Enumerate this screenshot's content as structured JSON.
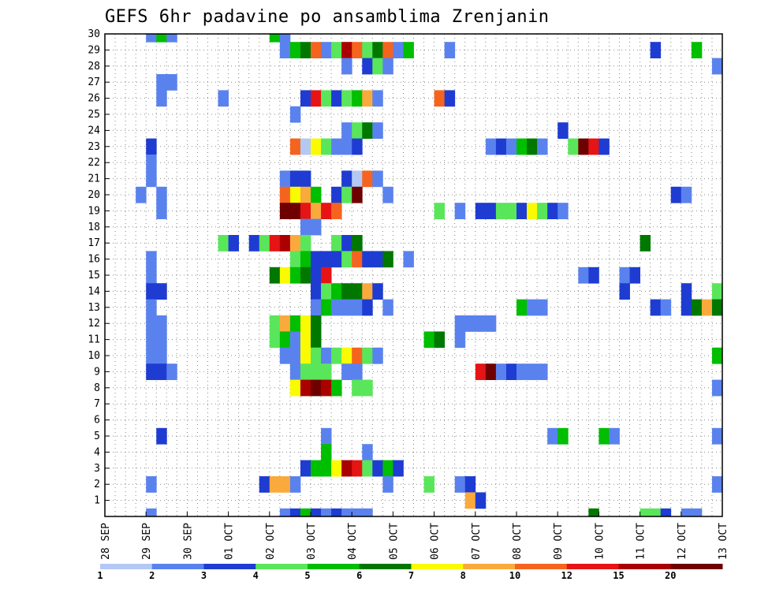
{
  "chart_data": {
    "type": "heatmap",
    "title": "GEFS 6hr padavine po ansamblima Zrenjanin",
    "xlabel": "",
    "ylabel": "",
    "x_tick_labels": [
      "28 SEP",
      "29 SEP",
      "30 SEP",
      "01 OCT",
      "02 OCT",
      "03 OCT",
      "04 OCT",
      "05 OCT",
      "06 OCT",
      "07 OCT",
      "08 OCT",
      "09 OCT",
      "10 OCT",
      "11 OCT",
      "12 OCT",
      "13 OCT"
    ],
    "y_tick_labels": [
      "1",
      "2",
      "3",
      "4",
      "5",
      "6",
      "7",
      "8",
      "9",
      "10",
      "11",
      "12",
      "13",
      "14",
      "15",
      "16",
      "17",
      "18",
      "19",
      "20",
      "21",
      "22",
      "23",
      "24",
      "25",
      "26",
      "27",
      "28",
      "29",
      "30"
    ],
    "x_steps_per_day": 4,
    "x_range": [
      0,
      60
    ],
    "y_range": [
      0,
      30
    ],
    "grid": true,
    "legend": {
      "levels": [
        "1",
        "2",
        "3",
        "4",
        "5",
        "6",
        "7",
        "8",
        "10",
        "12",
        "15",
        "20"
      ],
      "colors": [
        "#b4c8f4",
        "#5a82ee",
        "#1e3cd2",
        "#5ae65a",
        "#00be00",
        "#007800",
        "#fafa00",
        "#faaa3c",
        "#f5641e",
        "#e61414",
        "#aa0000",
        "#6e0000"
      ]
    },
    "color_scale": [
      "#b4c8f4",
      "#5a82ee",
      "#1e3cd2",
      "#5ae65a",
      "#00be00",
      "#007800",
      "#fafa00",
      "#faaa3c",
      "#f5641e",
      "#e61414",
      "#aa0000",
      "#6e0000"
    ],
    "cells": [
      [
        30,
        4,
        1
      ],
      [
        30,
        5,
        4
      ],
      [
        30,
        6,
        1
      ],
      [
        30,
        16,
        4
      ],
      [
        30,
        17,
        1
      ],
      [
        29,
        17,
        1
      ],
      [
        29,
        18,
        4
      ],
      [
        29,
        19,
        5
      ],
      [
        29,
        20,
        8
      ],
      [
        29,
        21,
        1
      ],
      [
        29,
        22,
        3
      ],
      [
        29,
        23,
        10
      ],
      [
        29,
        24,
        8
      ],
      [
        29,
        25,
        3
      ],
      [
        29,
        26,
        5
      ],
      [
        29,
        27,
        8
      ],
      [
        29,
        28,
        1
      ],
      [
        29,
        29,
        4
      ],
      [
        29,
        33,
        1
      ],
      [
        29,
        53,
        2
      ],
      [
        29,
        57,
        4
      ],
      [
        28,
        23,
        1
      ],
      [
        28,
        25,
        2
      ],
      [
        28,
        26,
        3
      ],
      [
        28,
        27,
        1
      ],
      [
        28,
        59,
        1
      ],
      [
        27,
        5,
        1
      ],
      [
        27,
        6,
        1
      ],
      [
        26,
        5,
        1
      ],
      [
        26,
        11,
        1
      ],
      [
        26,
        19,
        2
      ],
      [
        26,
        20,
        9
      ],
      [
        26,
        21,
        3
      ],
      [
        26,
        22,
        2
      ],
      [
        26,
        23,
        3
      ],
      [
        26,
        24,
        4
      ],
      [
        26,
        25,
        7
      ],
      [
        26,
        26,
        1
      ],
      [
        26,
        32,
        8
      ],
      [
        26,
        33,
        2
      ],
      [
        25,
        18,
        1
      ],
      [
        24,
        23,
        1
      ],
      [
        24,
        24,
        3
      ],
      [
        24,
        25,
        5
      ],
      [
        24,
        26,
        1
      ],
      [
        24,
        44,
        2
      ],
      [
        23,
        4,
        2
      ],
      [
        23,
        18,
        8
      ],
      [
        23,
        19,
        12
      ],
      [
        23,
        20,
        6
      ],
      [
        23,
        21,
        3
      ],
      [
        23,
        22,
        1
      ],
      [
        23,
        23,
        1
      ],
      [
        23,
        24,
        2
      ],
      [
        23,
        37,
        1
      ],
      [
        23,
        38,
        2
      ],
      [
        23,
        39,
        1
      ],
      [
        23,
        40,
        4
      ],
      [
        23,
        41,
        5
      ],
      [
        23,
        42,
        1
      ],
      [
        23,
        45,
        3
      ],
      [
        23,
        46,
        11
      ],
      [
        23,
        47,
        9
      ],
      [
        23,
        48,
        2
      ],
      [
        22,
        4,
        1
      ],
      [
        21,
        4,
        1
      ],
      [
        21,
        17,
        1
      ],
      [
        21,
        18,
        2
      ],
      [
        21,
        19,
        2
      ],
      [
        21,
        23,
        2
      ],
      [
        21,
        24,
        12
      ],
      [
        21,
        25,
        8
      ],
      [
        21,
        26,
        1
      ],
      [
        20,
        3,
        1
      ],
      [
        20,
        5,
        1
      ],
      [
        20,
        17,
        8
      ],
      [
        20,
        18,
        6
      ],
      [
        20,
        19,
        7
      ],
      [
        20,
        20,
        4
      ],
      [
        20,
        22,
        2
      ],
      [
        20,
        23,
        3
      ],
      [
        20,
        24,
        11
      ],
      [
        20,
        27,
        1
      ],
      [
        20,
        55,
        2
      ],
      [
        20,
        56,
        1
      ],
      [
        19,
        5,
        1
      ],
      [
        19,
        17,
        11
      ],
      [
        19,
        18,
        11
      ],
      [
        19,
        19,
        9
      ],
      [
        19,
        20,
        7
      ],
      [
        19,
        21,
        9
      ],
      [
        19,
        22,
        8
      ],
      [
        19,
        32,
        3
      ],
      [
        19,
        34,
        1
      ],
      [
        19,
        36,
        2
      ],
      [
        19,
        37,
        2
      ],
      [
        19,
        38,
        3
      ],
      [
        19,
        39,
        3
      ],
      [
        19,
        40,
        2
      ],
      [
        19,
        41,
        6
      ],
      [
        19,
        42,
        3
      ],
      [
        19,
        43,
        2
      ],
      [
        19,
        44,
        1
      ],
      [
        18,
        19,
        1
      ],
      [
        18,
        20,
        1
      ],
      [
        17,
        11,
        3
      ],
      [
        17,
        12,
        2
      ],
      [
        17,
        14,
        2
      ],
      [
        17,
        15,
        3
      ],
      [
        17,
        16,
        9
      ],
      [
        17,
        17,
        10
      ],
      [
        17,
        18,
        7
      ],
      [
        17,
        19,
        3
      ],
      [
        17,
        22,
        3
      ],
      [
        17,
        23,
        2
      ],
      [
        17,
        24,
        5
      ],
      [
        17,
        52,
        5
      ],
      [
        16,
        4,
        1
      ],
      [
        16,
        18,
        3
      ],
      [
        16,
        19,
        4
      ],
      [
        16,
        20,
        2
      ],
      [
        16,
        21,
        2
      ],
      [
        16,
        22,
        2
      ],
      [
        16,
        23,
        3
      ],
      [
        16,
        24,
        8
      ],
      [
        16,
        25,
        2
      ],
      [
        16,
        26,
        2
      ],
      [
        16,
        27,
        5
      ],
      [
        16,
        29,
        1
      ],
      [
        15,
        4,
        1
      ],
      [
        15,
        16,
        5
      ],
      [
        15,
        17,
        6
      ],
      [
        15,
        18,
        4
      ],
      [
        15,
        19,
        5
      ],
      [
        15,
        20,
        2
      ],
      [
        15,
        21,
        9
      ],
      [
        15,
        46,
        1
      ],
      [
        15,
        47,
        2
      ],
      [
        15,
        50,
        1
      ],
      [
        15,
        51,
        2
      ],
      [
        14,
        4,
        2
      ],
      [
        14,
        5,
        2
      ],
      [
        14,
        20,
        2
      ],
      [
        14,
        21,
        3
      ],
      [
        14,
        22,
        4
      ],
      [
        14,
        23,
        5
      ],
      [
        14,
        24,
        5
      ],
      [
        14,
        25,
        7
      ],
      [
        14,
        26,
        2
      ],
      [
        14,
        50,
        2
      ],
      [
        14,
        56,
        2
      ],
      [
        14,
        59,
        3
      ],
      [
        13,
        4,
        1
      ],
      [
        13,
        20,
        1
      ],
      [
        13,
        21,
        4
      ],
      [
        13,
        22,
        1
      ],
      [
        13,
        23,
        1
      ],
      [
        13,
        24,
        1
      ],
      [
        13,
        25,
        2
      ],
      [
        13,
        27,
        1
      ],
      [
        13,
        40,
        4
      ],
      [
        13,
        41,
        1
      ],
      [
        13,
        42,
        1
      ],
      [
        13,
        53,
        2
      ],
      [
        13,
        54,
        1
      ],
      [
        13,
        56,
        2
      ],
      [
        13,
        57,
        5
      ],
      [
        13,
        58,
        7
      ],
      [
        13,
        59,
        5
      ],
      [
        12,
        4,
        1
      ],
      [
        12,
        5,
        1
      ],
      [
        12,
        16,
        3
      ],
      [
        12,
        17,
        7
      ],
      [
        12,
        18,
        4
      ],
      [
        12,
        19,
        6
      ],
      [
        12,
        20,
        5
      ],
      [
        12,
        34,
        1
      ],
      [
        12,
        35,
        1
      ],
      [
        12,
        36,
        1
      ],
      [
        12,
        37,
        1
      ],
      [
        11,
        4,
        1
      ],
      [
        11,
        5,
        1
      ],
      [
        11,
        16,
        3
      ],
      [
        11,
        17,
        4
      ],
      [
        11,
        18,
        1
      ],
      [
        11,
        19,
        6
      ],
      [
        11,
        20,
        5
      ],
      [
        11,
        31,
        4
      ],
      [
        11,
        32,
        5
      ],
      [
        11,
        34,
        1
      ],
      [
        10,
        4,
        1
      ],
      [
        10,
        5,
        1
      ],
      [
        10,
        17,
        1
      ],
      [
        10,
        18,
        1
      ],
      [
        10,
        19,
        6
      ],
      [
        10,
        20,
        3
      ],
      [
        10,
        21,
        1
      ],
      [
        10,
        22,
        3
      ],
      [
        10,
        23,
        6
      ],
      [
        10,
        24,
        8
      ],
      [
        10,
        25,
        3
      ],
      [
        10,
        26,
        1
      ],
      [
        10,
        59,
        4
      ],
      [
        9,
        4,
        2
      ],
      [
        9,
        5,
        2
      ],
      [
        9,
        6,
        1
      ],
      [
        9,
        18,
        1
      ],
      [
        9,
        19,
        3
      ],
      [
        9,
        20,
        3
      ],
      [
        9,
        21,
        3
      ],
      [
        9,
        23,
        1
      ],
      [
        9,
        24,
        1
      ],
      [
        9,
        36,
        9
      ],
      [
        9,
        37,
        11
      ],
      [
        9,
        38,
        1
      ],
      [
        9,
        39,
        2
      ],
      [
        9,
        40,
        1
      ],
      [
        9,
        41,
        1
      ],
      [
        9,
        42,
        1
      ],
      [
        8,
        18,
        6
      ],
      [
        8,
        19,
        10
      ],
      [
        8,
        20,
        11
      ],
      [
        8,
        21,
        10
      ],
      [
        8,
        22,
        4
      ],
      [
        8,
        24,
        3
      ],
      [
        8,
        25,
        3
      ],
      [
        8,
        59,
        1
      ],
      [
        7,
        0,
        0
      ],
      [
        5,
        5,
        2
      ],
      [
        5,
        21,
        1
      ],
      [
        5,
        43,
        1
      ],
      [
        5,
        44,
        4
      ],
      [
        5,
        48,
        4
      ],
      [
        5,
        49,
        1
      ],
      [
        5,
        59,
        1
      ],
      [
        4,
        21,
        4
      ],
      [
        4,
        25,
        1
      ],
      [
        3,
        19,
        2
      ],
      [
        3,
        20,
        4
      ],
      [
        3,
        21,
        4
      ],
      [
        3,
        22,
        6
      ],
      [
        3,
        23,
        10
      ],
      [
        3,
        24,
        9
      ],
      [
        3,
        25,
        3
      ],
      [
        3,
        26,
        2
      ],
      [
        3,
        27,
        4
      ],
      [
        3,
        28,
        2
      ],
      [
        2,
        4,
        1
      ],
      [
        2,
        15,
        2
      ],
      [
        2,
        16,
        7
      ],
      [
        2,
        17,
        7
      ],
      [
        2,
        18,
        1
      ],
      [
        2,
        27,
        1
      ],
      [
        2,
        31,
        3
      ],
      [
        2,
        34,
        1
      ],
      [
        2,
        35,
        2
      ],
      [
        2,
        59,
        1
      ],
      [
        1,
        35,
        7
      ],
      [
        1,
        36,
        2
      ],
      [
        0,
        4,
        1
      ],
      [
        0,
        17,
        1
      ],
      [
        0,
        18,
        2
      ],
      [
        0,
        19,
        4
      ],
      [
        0,
        20,
        2
      ],
      [
        0,
        21,
        1
      ],
      [
        0,
        22,
        2
      ],
      [
        0,
        23,
        1
      ],
      [
        0,
        24,
        1
      ],
      [
        0,
        25,
        1
      ],
      [
        0,
        47,
        5
      ],
      [
        0,
        52,
        3
      ],
      [
        0,
        53,
        3
      ],
      [
        0,
        54,
        2
      ],
      [
        0,
        56,
        1
      ],
      [
        0,
        57,
        1
      ]
    ]
  }
}
